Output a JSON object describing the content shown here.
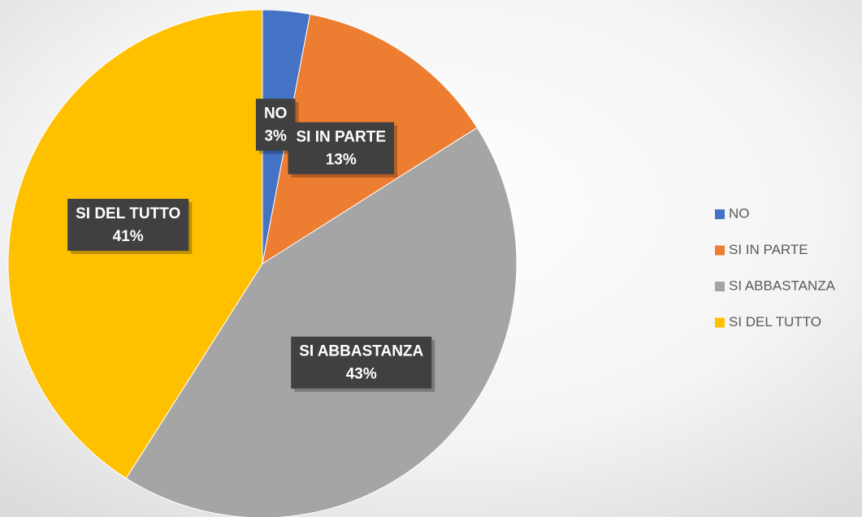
{
  "chart_data": {
    "type": "pie",
    "categories": [
      "NO",
      "SI IN PARTE",
      "SI ABBASTANZA",
      "SI DEL TUTTO"
    ],
    "values": [
      3,
      13,
      43,
      41
    ],
    "value_labels": [
      "3%",
      "13%",
      "43%",
      "41%"
    ],
    "colors": [
      "#4472c4",
      "#ed7d31",
      "#a5a5a5",
      "#ffc000"
    ],
    "legend": "right"
  }
}
